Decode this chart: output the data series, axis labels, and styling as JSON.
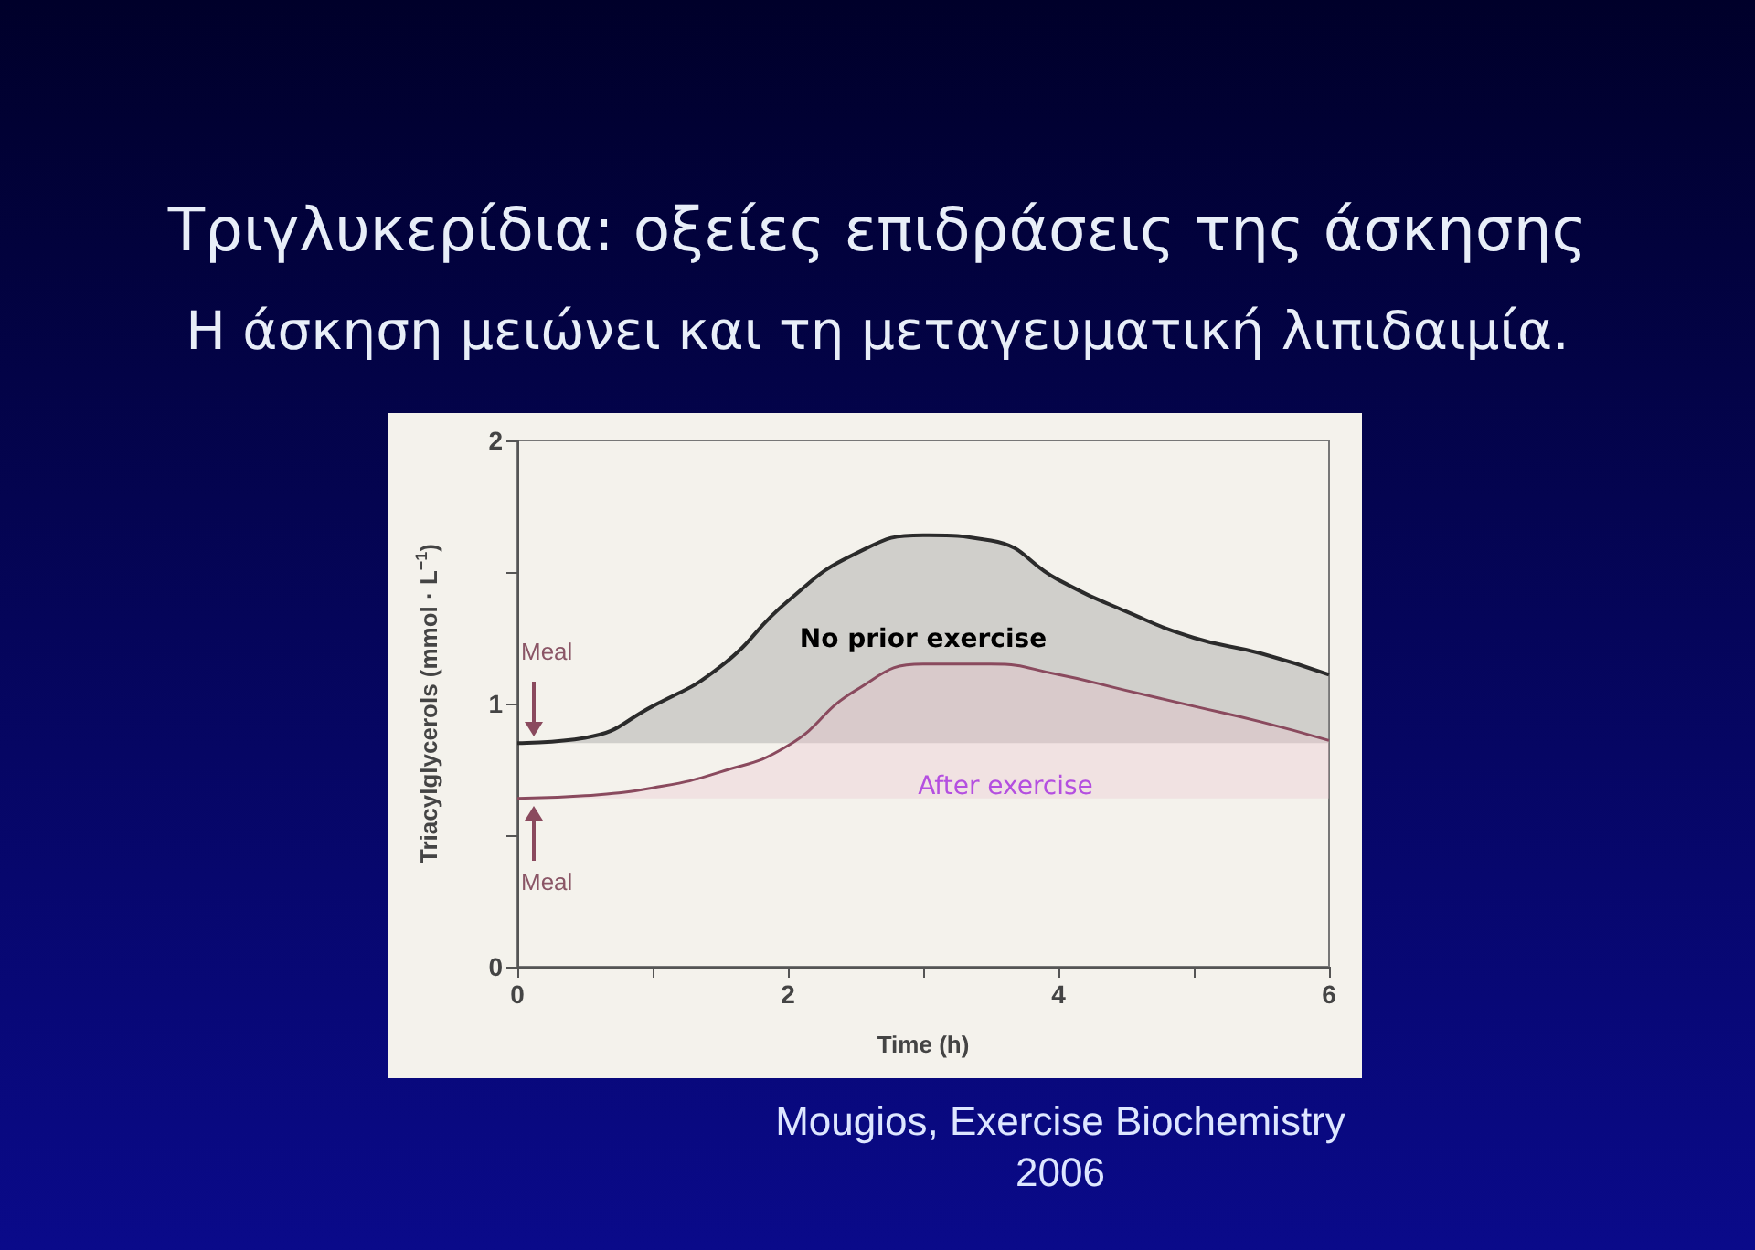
{
  "chart_data": {
    "type": "area",
    "title": "Τριγλυκερίδια: οξείες επιδράσεις της άσκησης",
    "subtitle": "Η άσκηση μειώνει και τη μεταγευματική λιπιδαιμία.",
    "xlabel": "Time (h)",
    "ylabel": "Triacylglycerols (mmol · L$^{−1}$)",
    "x": [
      0,
      0.5,
      1,
      1.5,
      2,
      2.5,
      3,
      3.5,
      4,
      4.5,
      5,
      5.5,
      6
    ],
    "series": [
      {
        "name": "No prior exercise",
        "color": "#2b2b2b",
        "values": [
          0.85,
          0.87,
          0.99,
          1.14,
          1.39,
          1.57,
          1.64,
          1.62,
          1.47,
          1.35,
          1.25,
          1.19,
          1.11
        ]
      },
      {
        "name": "After exercise",
        "color": "#8a4a5e",
        "values": [
          0.64,
          0.65,
          0.68,
          0.74,
          0.84,
          1.05,
          1.15,
          1.15,
          1.11,
          1.05,
          0.99,
          0.93,
          0.86
        ]
      }
    ],
    "xlim": [
      0,
      6
    ],
    "xticks": [
      0,
      {
        "value": 1,
        "label": null
      },
      2,
      {
        "value": 3,
        "label": null
      },
      4,
      {
        "value": 5,
        "label": null
      },
      6
    ],
    "ylim": [
      0,
      2
    ],
    "yticks": [
      0,
      {
        "value": 0.5,
        "label": null
      },
      1,
      {
        "value": 1.5,
        "label": null
      },
      2
    ],
    "grid": false,
    "legend": false,
    "annotations": [
      "Meal",
      "Meal",
      "Mougios, Exercise Biochemistry",
      "2006"
    ]
  }
}
